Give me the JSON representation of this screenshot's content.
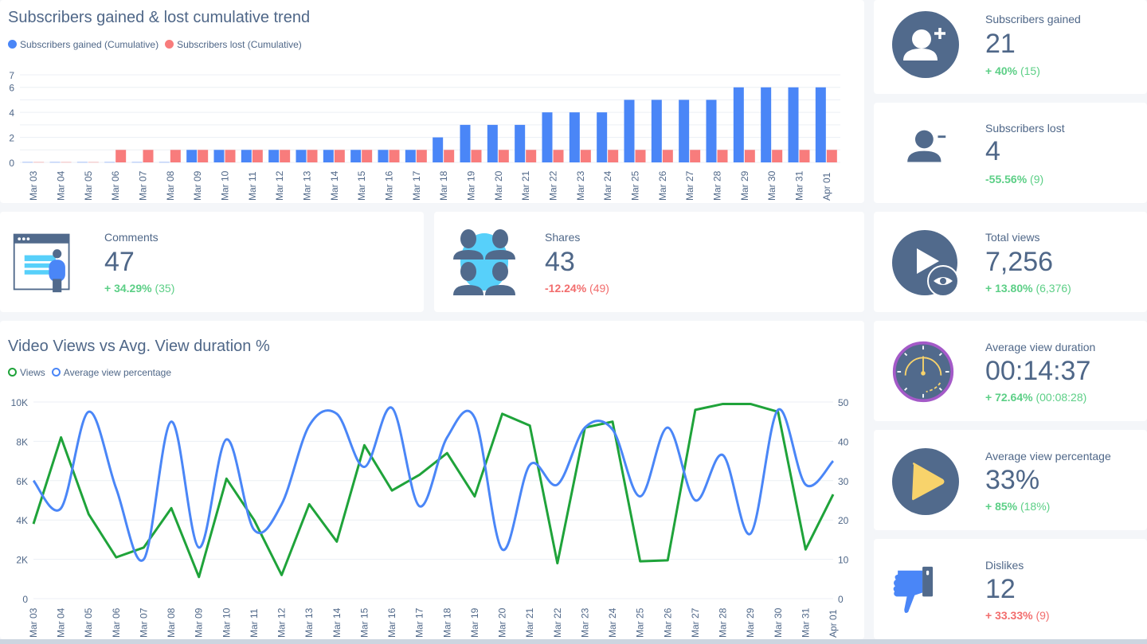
{
  "colors": {
    "gained": "#4a86f7",
    "lost": "#f87c7c",
    "views": "#1fa33a",
    "avg_pct": "#4a86f7",
    "icon_dark": "#516a8c",
    "positive": "#5ccf86",
    "negative": "#f26d6d"
  },
  "bar_card": {
    "title": "Subscribers gained & lost cumulative trend"
  },
  "line_card": {
    "title": "Video Views vs Avg. View duration %"
  },
  "chart_data": [
    {
      "type": "bar",
      "title": "Subscribers gained & lost cumulative trend",
      "categories": [
        "Mar 03",
        "Mar 04",
        "Mar 05",
        "Mar 06",
        "Mar 07",
        "Mar 08",
        "Mar 09",
        "Mar 10",
        "Mar 11",
        "Mar 12",
        "Mar 13",
        "Mar 14",
        "Mar 15",
        "Mar 16",
        "Mar 17",
        "Mar 18",
        "Mar 19",
        "Mar 20",
        "Mar 21",
        "Mar 22",
        "Mar 23",
        "Mar 24",
        "Mar 25",
        "Mar 26",
        "Mar 27",
        "Mar 28",
        "Mar 29",
        "Mar 30",
        "Mar 31",
        "Apr 01"
      ],
      "series": [
        {
          "name": "Subscribers gained (Cumulative)",
          "values": [
            0,
            0,
            0,
            0,
            0,
            0,
            1,
            1,
            1,
            1,
            1,
            1,
            1,
            1,
            1,
            2,
            3,
            3,
            3,
            4,
            4,
            4,
            5,
            5,
            5,
            5,
            6,
            6,
            6,
            6
          ]
        },
        {
          "name": "Subscribers lost (Cumulative)",
          "values": [
            0,
            0,
            0,
            1,
            1,
            1,
            1,
            1,
            1,
            1,
            1,
            1,
            1,
            1,
            1,
            1,
            1,
            1,
            1,
            1,
            1,
            1,
            1,
            1,
            1,
            1,
            1,
            1,
            1,
            1
          ]
        }
      ],
      "yticks": [
        0,
        2,
        4,
        6,
        7
      ],
      "ylim": [
        0,
        7
      ],
      "grid": true,
      "legend": "top-left"
    },
    {
      "type": "line",
      "title": "Video Views vs Avg. View duration %",
      "categories": [
        "Mar 03",
        "Mar 04",
        "Mar 05",
        "Mar 06",
        "Mar 07",
        "Mar 08",
        "Mar 09",
        "Mar 10",
        "Mar 11",
        "Mar 12",
        "Mar 13",
        "Mar 14",
        "Mar 15",
        "Mar 16",
        "Mar 17",
        "Mar 18",
        "Mar 19",
        "Mar 20",
        "Mar 21",
        "Mar 22",
        "Mar 23",
        "Mar 24",
        "Mar 25",
        "Mar 26",
        "Mar 27",
        "Mar 28",
        "Mar 29",
        "Mar 30",
        "Mar 31",
        "Apr 01"
      ],
      "series": [
        {
          "name": "Views",
          "axis": "left",
          "smooth": false,
          "values": [
            3800,
            8200,
            4300,
            2100,
            2600,
            4600,
            1100,
            6100,
            4000,
            1200,
            4800,
            2900,
            7800,
            5500,
            6300,
            7400,
            5200,
            9400,
            8800,
            1800,
            8700,
            9000,
            1900,
            1950,
            9600,
            9900,
            9900,
            9500,
            2500,
            5300
          ]
        },
        {
          "name": "Average view percentage",
          "axis": "right",
          "smooth": true,
          "values": [
            30,
            23,
            47.5,
            28,
            10,
            45,
            13,
            40.5,
            17.5,
            24,
            44,
            47,
            33.5,
            48.5,
            23.5,
            41,
            46,
            12.5,
            34,
            29,
            43.5,
            43,
            26,
            43.5,
            25,
            36.5,
            16.5,
            48,
            29,
            35
          ]
        }
      ],
      "left_axis": {
        "ylim": [
          0,
          10000
        ],
        "ticks": [
          "0",
          "2K",
          "4K",
          "6K",
          "8K",
          "10K"
        ]
      },
      "right_axis": {
        "ylim": [
          0,
          50
        ],
        "ticks": [
          "0",
          "10",
          "20",
          "30",
          "40",
          "50"
        ]
      },
      "grid": true,
      "legend": "top-left"
    }
  ],
  "kpis": {
    "subs_gained": {
      "label": "Subscribers gained",
      "value": "21",
      "change": "+ 40%",
      "previous": "(15)",
      "icon": "user-plus-icon",
      "trend": "positive"
    },
    "subs_lost": {
      "label": "Subscribers lost",
      "value": "4",
      "change": "-55.56%",
      "previous": "(9)",
      "icon": "user-minus-icon",
      "trend": "positive"
    },
    "comments": {
      "label": "Comments",
      "value": "47",
      "change": "+ 34.29%",
      "previous": "(35)",
      "icon": "comments-board-icon",
      "trend": "positive"
    },
    "shares": {
      "label": "Shares",
      "value": "43",
      "change": "-12.24%",
      "previous": "(49)",
      "icon": "people-group-icon",
      "trend": "negative"
    },
    "total_views": {
      "label": "Total views",
      "value": "7,256",
      "change": "+ 13.80%",
      "previous": "(6,376)",
      "icon": "play-eye-icon",
      "trend": "positive"
    },
    "avg_duration": {
      "label": "Average view duration",
      "value": "00:14:37",
      "change": "+ 72.64%",
      "previous": "(00:08:28)",
      "icon": "stopwatch-icon",
      "trend": "positive"
    },
    "avg_percentage": {
      "label": "Average view percentage",
      "value": "33%",
      "change": "+ 85%",
      "previous": "(18%)",
      "icon": "play-circle-icon",
      "trend": "positive"
    },
    "dislikes": {
      "label": "Dislikes",
      "value": "12",
      "change": "+ 33.33%",
      "previous": "(9)",
      "icon": "thumbs-down-icon",
      "trend": "negative"
    }
  }
}
